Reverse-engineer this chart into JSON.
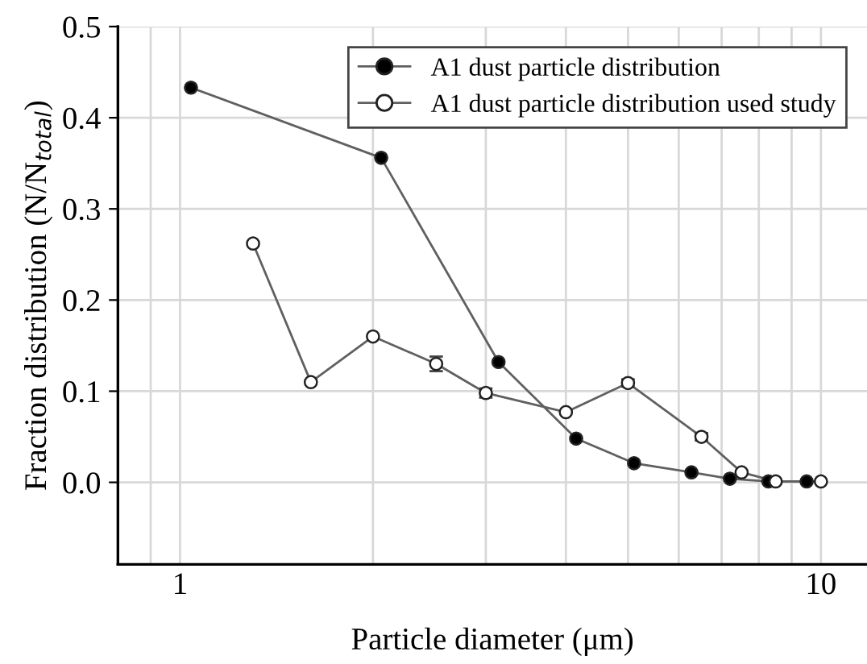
{
  "chart_data": {
    "type": "line",
    "xlabel": "Particle diameter (μm)",
    "ylabel": "Fraction distribution (N/N$_{total}$)",
    "log": "x",
    "xlim": [
      0.8,
      11.8
    ],
    "ylim": [
      -0.09,
      0.5
    ],
    "xticks": [
      {
        "value": 0.9,
        "label": null
      },
      1,
      {
        "value": 2,
        "label": null
      },
      {
        "value": 3,
        "label": null
      },
      {
        "value": 4,
        "label": null
      },
      {
        "value": 5,
        "label": null
      },
      {
        "value": 6,
        "label": null
      },
      {
        "value": 7,
        "label": null
      },
      {
        "value": 8,
        "label": null
      },
      {
        "value": 9,
        "label": null
      },
      10
    ],
    "yticks": [
      {
        "value": 0,
        "label": "0.0"
      },
      0.1,
      0.2,
      0.3,
      0.4,
      0.5
    ],
    "grid": true,
    "legend": "top right",
    "marker": "circle",
    "line_style": "solid",
    "series": [
      {
        "name": "A1 dust particle distribution",
        "color": "#000000",
        "x": [
          1.04,
          2.06,
          3.14,
          4.15,
          5.11,
          6.28,
          7.21,
          8.28,
          9.5
        ],
        "values": [
          0.433,
          0.356,
          0.132,
          0.048,
          0.021,
          0.011,
          0.004,
          0.001,
          0.001
        ]
      },
      {
        "name": "A1 dust particle distribution used study",
        "color": "#ffffff",
        "x": [
          1.3,
          1.6,
          2.0,
          2.51,
          3.0,
          4.0,
          5.0,
          6.51,
          7.52,
          8.5,
          10.0
        ],
        "values": [
          0.262,
          0.11,
          0.16,
          0.13,
          0.098,
          0.077,
          0.109,
          0.05,
          0.011,
          0.001,
          0.001
        ],
        "errors": [
          null,
          null,
          null,
          0.008,
          0.005,
          null,
          0.004,
          0.004,
          null,
          null,
          null
        ]
      }
    ]
  }
}
